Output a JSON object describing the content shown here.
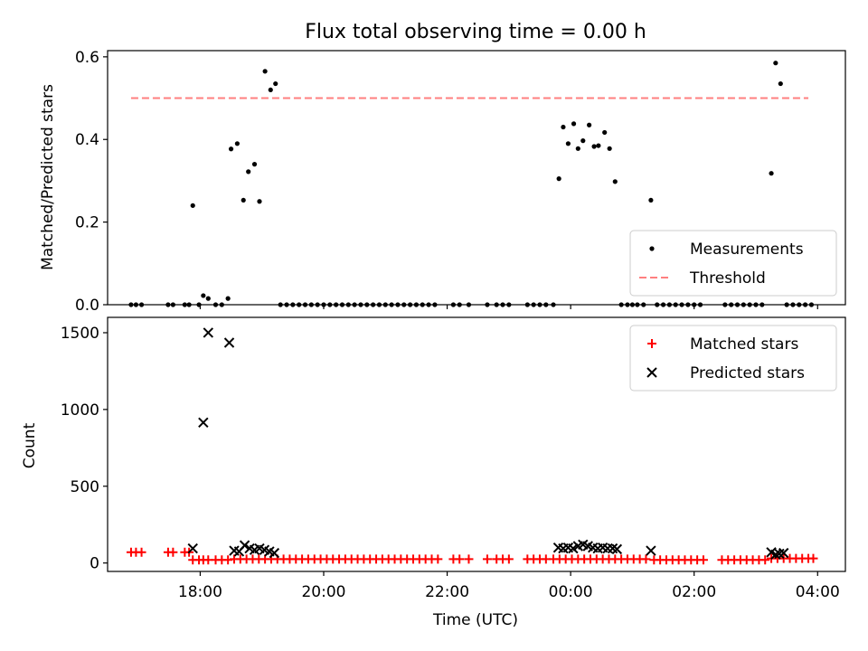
{
  "chart_data": [
    {
      "type": "scatter",
      "title": "Flux total observing time = 0.00 h",
      "xlabel": "",
      "ylabel": "Matched/Predicted stars",
      "xlim": [
        16.5,
        28.45
      ],
      "ylim": [
        0,
        0.615
      ],
      "yticks": [
        0,
        0.2,
        0.4,
        0.6
      ],
      "ytick_labels": [
        "0.0",
        "0.2",
        "0.4",
        "0.6"
      ],
      "legend": {
        "position": "lower-right",
        "entries": [
          {
            "label": "Measurements",
            "marker": "dot",
            "color": "#000000"
          },
          {
            "label": "Threshold",
            "marker": "dashed-line",
            "color": "#ff7f7f"
          }
        ]
      },
      "threshold": {
        "y": 0.5,
        "x_range": [
          16.88,
          27.85
        ]
      },
      "series": [
        {
          "name": "Measurements",
          "color": "#000000",
          "points": [
            [
              16.88,
              0
            ],
            [
              16.96,
              0
            ],
            [
              17.05,
              0
            ],
            [
              17.48,
              0
            ],
            [
              17.56,
              0
            ],
            [
              17.75,
              0
            ],
            [
              17.82,
              0
            ],
            [
              17.88,
              0.24
            ],
            [
              17.98,
              0
            ],
            [
              18.05,
              0.022
            ],
            [
              18.13,
              0.015
            ],
            [
              18.25,
              0
            ],
            [
              18.35,
              0
            ],
            [
              18.45,
              0.015
            ],
            [
              18.5,
              0.377
            ],
            [
              18.6,
              0.39
            ],
            [
              18.7,
              0.253
            ],
            [
              18.78,
              0.322
            ],
            [
              18.88,
              0.34
            ],
            [
              18.96,
              0.25
            ],
            [
              19.05,
              0.565
            ],
            [
              19.14,
              0.52
            ],
            [
              19.22,
              0.535
            ],
            [
              19.3,
              0
            ],
            [
              19.4,
              0
            ],
            [
              19.5,
              0
            ],
            [
              19.6,
              0
            ],
            [
              19.7,
              0
            ],
            [
              19.8,
              0
            ],
            [
              19.9,
              0
            ],
            [
              20.0,
              0
            ],
            [
              20.1,
              0
            ],
            [
              20.2,
              0
            ],
            [
              20.3,
              0
            ],
            [
              20.4,
              0
            ],
            [
              20.5,
              0
            ],
            [
              20.6,
              0
            ],
            [
              20.7,
              0
            ],
            [
              20.8,
              0
            ],
            [
              20.9,
              0
            ],
            [
              21.0,
              0
            ],
            [
              21.1,
              0
            ],
            [
              21.2,
              0
            ],
            [
              21.3,
              0
            ],
            [
              21.4,
              0
            ],
            [
              21.5,
              0
            ],
            [
              21.6,
              0
            ],
            [
              21.7,
              0
            ],
            [
              21.8,
              0
            ],
            [
              22.1,
              0
            ],
            [
              22.2,
              0
            ],
            [
              22.35,
              0
            ],
            [
              22.65,
              0
            ],
            [
              22.8,
              0
            ],
            [
              22.9,
              0
            ],
            [
              23.0,
              0
            ],
            [
              23.3,
              0
            ],
            [
              23.4,
              0
            ],
            [
              23.5,
              0
            ],
            [
              23.6,
              0
            ],
            [
              23.72,
              0
            ],
            [
              23.81,
              0.305
            ],
            [
              23.88,
              0.43
            ],
            [
              23.96,
              0.39
            ],
            [
              24.05,
              0.438
            ],
            [
              24.12,
              0.378
            ],
            [
              24.2,
              0.397
            ],
            [
              24.3,
              0.435
            ],
            [
              24.38,
              0.383
            ],
            [
              24.45,
              0.385
            ],
            [
              24.55,
              0.417
            ],
            [
              24.63,
              0.378
            ],
            [
              24.72,
              0.298
            ],
            [
              24.82,
              0
            ],
            [
              24.92,
              0
            ],
            [
              25.0,
              0
            ],
            [
              25.08,
              0
            ],
            [
              25.18,
              0
            ],
            [
              25.3,
              0.253
            ],
            [
              25.4,
              0
            ],
            [
              25.5,
              0
            ],
            [
              25.6,
              0
            ],
            [
              25.7,
              0
            ],
            [
              25.8,
              0
            ],
            [
              25.9,
              0
            ],
            [
              26.0,
              0
            ],
            [
              26.1,
              0
            ],
            [
              26.5,
              0
            ],
            [
              26.6,
              0
            ],
            [
              26.7,
              0
            ],
            [
              26.8,
              0
            ],
            [
              26.9,
              0
            ],
            [
              27.0,
              0
            ],
            [
              27.1,
              0
            ],
            [
              27.25,
              0.318
            ],
            [
              27.32,
              0.585
            ],
            [
              27.4,
              0.535
            ],
            [
              27.5,
              0
            ],
            [
              27.6,
              0
            ],
            [
              27.7,
              0
            ],
            [
              27.8,
              0
            ],
            [
              27.9,
              0
            ]
          ]
        }
      ]
    },
    {
      "type": "scatter",
      "title": "",
      "xlabel": "Time (UTC)",
      "ylabel": "Count",
      "xlim": [
        16.5,
        28.45
      ],
      "ylim": [
        -55,
        1600
      ],
      "yticks": [
        0,
        500,
        1000,
        1500
      ],
      "ytick_labels": [
        "0",
        "500",
        "1000",
        "1500"
      ],
      "xticks": [
        18,
        20,
        22,
        24,
        26,
        28
      ],
      "xtick_labels": [
        "18:00",
        "20:00",
        "22:00",
        "00:00",
        "02:00",
        "04:00"
      ],
      "legend": {
        "position": "top-right",
        "entries": [
          {
            "label": "Matched stars",
            "marker": "plus",
            "color": "#ff0000"
          },
          {
            "label": "Predicted stars",
            "marker": "x",
            "color": "#000000"
          }
        ]
      },
      "series": [
        {
          "name": "Matched stars",
          "color": "#ff0000",
          "points": [
            [
              16.88,
              70
            ],
            [
              16.96,
              70
            ],
            [
              17.05,
              70
            ],
            [
              17.48,
              70
            ],
            [
              17.56,
              70
            ],
            [
              17.75,
              70
            ],
            [
              17.82,
              70
            ],
            [
              17.88,
              20
            ],
            [
              17.98,
              20
            ],
            [
              18.05,
              20
            ],
            [
              18.13,
              20
            ],
            [
              18.25,
              20
            ],
            [
              18.35,
              20
            ],
            [
              18.45,
              20
            ],
            [
              18.55,
              25
            ],
            [
              18.65,
              25
            ],
            [
              18.75,
              25
            ],
            [
              18.85,
              25
            ],
            [
              18.95,
              25
            ],
            [
              19.05,
              25
            ],
            [
              19.15,
              25
            ],
            [
              19.25,
              25
            ],
            [
              19.35,
              25
            ],
            [
              19.45,
              25
            ],
            [
              19.55,
              25
            ],
            [
              19.65,
              25
            ],
            [
              19.75,
              25
            ],
            [
              19.85,
              25
            ],
            [
              19.95,
              25
            ],
            [
              20.05,
              25
            ],
            [
              20.15,
              25
            ],
            [
              20.25,
              25
            ],
            [
              20.35,
              25
            ],
            [
              20.45,
              25
            ],
            [
              20.55,
              25
            ],
            [
              20.65,
              25
            ],
            [
              20.75,
              25
            ],
            [
              20.85,
              25
            ],
            [
              20.95,
              25
            ],
            [
              21.05,
              25
            ],
            [
              21.15,
              25
            ],
            [
              21.25,
              25
            ],
            [
              21.35,
              25
            ],
            [
              21.45,
              25
            ],
            [
              21.55,
              25
            ],
            [
              21.65,
              25
            ],
            [
              21.75,
              25
            ],
            [
              21.85,
              25
            ],
            [
              22.1,
              25
            ],
            [
              22.2,
              25
            ],
            [
              22.35,
              25
            ],
            [
              22.65,
              25
            ],
            [
              22.8,
              25
            ],
            [
              22.9,
              25
            ],
            [
              23.0,
              25
            ],
            [
              23.3,
              25
            ],
            [
              23.4,
              25
            ],
            [
              23.5,
              25
            ],
            [
              23.6,
              25
            ],
            [
              23.72,
              25
            ],
            [
              23.82,
              25
            ],
            [
              23.92,
              25
            ],
            [
              24.02,
              25
            ],
            [
              24.12,
              25
            ],
            [
              24.22,
              25
            ],
            [
              24.32,
              25
            ],
            [
              24.42,
              25
            ],
            [
              24.52,
              25
            ],
            [
              24.62,
              25
            ],
            [
              24.72,
              25
            ],
            [
              24.82,
              25
            ],
            [
              24.92,
              25
            ],
            [
              25.02,
              25
            ],
            [
              25.12,
              25
            ],
            [
              25.22,
              25
            ],
            [
              25.35,
              20
            ],
            [
              25.45,
              20
            ],
            [
              25.55,
              20
            ],
            [
              25.65,
              20
            ],
            [
              25.75,
              20
            ],
            [
              25.85,
              20
            ],
            [
              25.95,
              20
            ],
            [
              26.05,
              20
            ],
            [
              26.15,
              20
            ],
            [
              26.45,
              20
            ],
            [
              26.55,
              20
            ],
            [
              26.65,
              20
            ],
            [
              26.75,
              20
            ],
            [
              26.85,
              20
            ],
            [
              26.95,
              20
            ],
            [
              27.05,
              20
            ],
            [
              27.15,
              20
            ],
            [
              27.25,
              30
            ],
            [
              27.35,
              30
            ],
            [
              27.45,
              30
            ],
            [
              27.55,
              30
            ],
            [
              27.65,
              30
            ],
            [
              27.75,
              30
            ],
            [
              27.85,
              30
            ],
            [
              27.93,
              30
            ]
          ]
        },
        {
          "name": "Predicted stars",
          "color": "#000000",
          "points": [
            [
              17.88,
              95
            ],
            [
              18.05,
              915
            ],
            [
              18.13,
              1500
            ],
            [
              18.47,
              1435
            ],
            [
              18.55,
              80
            ],
            [
              18.63,
              75
            ],
            [
              18.72,
              115
            ],
            [
              18.8,
              95
            ],
            [
              18.88,
              85
            ],
            [
              18.96,
              95
            ],
            [
              19.04,
              85
            ],
            [
              19.12,
              75
            ],
            [
              19.2,
              65
            ],
            [
              23.8,
              100
            ],
            [
              23.88,
              95
            ],
            [
              23.96,
              100
            ],
            [
              24.04,
              95
            ],
            [
              24.12,
              110
            ],
            [
              24.2,
              120
            ],
            [
              24.28,
              110
            ],
            [
              24.36,
              100
            ],
            [
              24.44,
              95
            ],
            [
              24.52,
              100
            ],
            [
              24.6,
              95
            ],
            [
              24.68,
              95
            ],
            [
              24.75,
              90
            ],
            [
              25.3,
              80
            ],
            [
              27.25,
              70
            ],
            [
              27.32,
              55
            ],
            [
              27.38,
              60
            ],
            [
              27.45,
              65
            ]
          ]
        }
      ]
    }
  ]
}
